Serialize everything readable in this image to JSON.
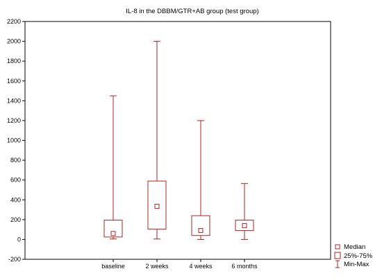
{
  "chart_data": {
    "type": "box",
    "title": "IL-8 in the DBBM/GTR+AB group (test group)",
    "xlabel": "",
    "ylabel": "",
    "ylim": [
      -200,
      2200
    ],
    "yticks": [
      -200,
      0,
      200,
      400,
      600,
      800,
      1000,
      1200,
      1400,
      1600,
      1800,
      2000,
      2200
    ],
    "categories": [
      "baseline",
      "2 weeks",
      "4 weeks",
      "6 months"
    ],
    "boxes": [
      {
        "category": "baseline",
        "min": 5,
        "q1": 25,
        "median": 60,
        "q3": 195,
        "max": 1450
      },
      {
        "category": "2 weeks",
        "min": 5,
        "q1": 105,
        "median": 335,
        "q3": 590,
        "max": 2000
      },
      {
        "category": "4 weeks",
        "min": 0,
        "q1": 40,
        "median": 90,
        "q3": 240,
        "max": 1200
      },
      {
        "category": "6 months",
        "min": 0,
        "q1": 90,
        "median": 140,
        "q3": 195,
        "max": 565
      }
    ],
    "legend": {
      "position": "bottom-right",
      "entries": [
        "Median",
        "25%-75%",
        "Min-Max"
      ]
    },
    "grid": false,
    "colors": {
      "series": "#b22222",
      "axis": "#000000"
    }
  }
}
